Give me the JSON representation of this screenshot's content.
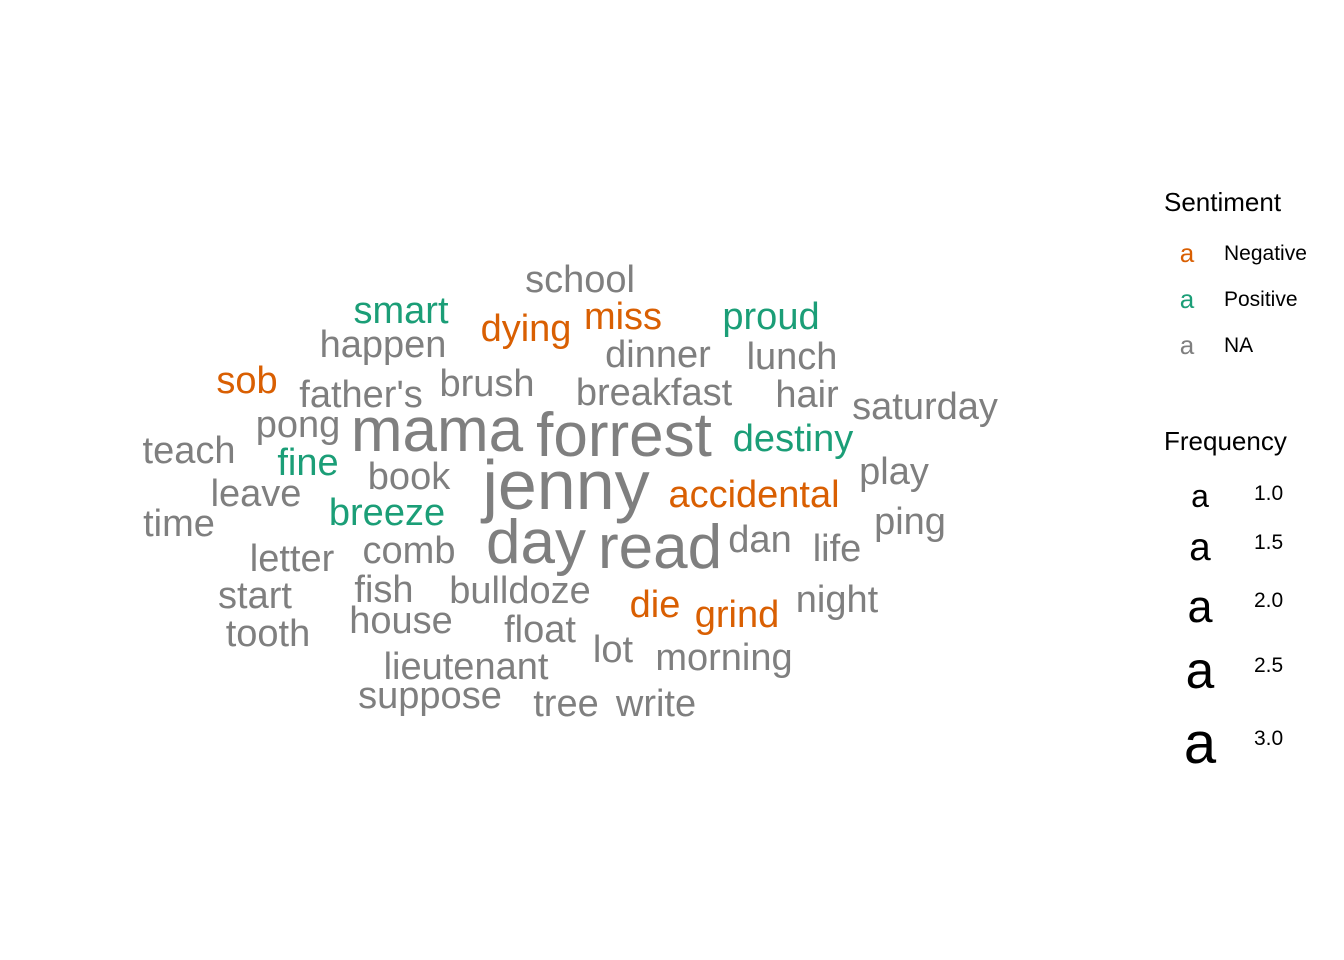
{
  "chart_data": {
    "type": "wordcloud",
    "sentiment_colors": {
      "Negative": "#D95F02",
      "Positive": "#1B9E77",
      "NA": "#7F7F7F"
    },
    "words": [
      {
        "word": "jenny",
        "frequency": 3.0,
        "sentiment": "NA"
      },
      {
        "word": "forrest",
        "frequency": 2.5,
        "sentiment": "NA"
      },
      {
        "word": "mama",
        "frequency": 2.5,
        "sentiment": "NA"
      },
      {
        "word": "read",
        "frequency": 2.5,
        "sentiment": "NA"
      },
      {
        "word": "day",
        "frequency": 2.5,
        "sentiment": "NA"
      },
      {
        "word": "school",
        "frequency": 1.0,
        "sentiment": "NA"
      },
      {
        "word": "smart",
        "frequency": 1.0,
        "sentiment": "Positive"
      },
      {
        "word": "miss",
        "frequency": 1.0,
        "sentiment": "Negative"
      },
      {
        "word": "dying",
        "frequency": 1.0,
        "sentiment": "Negative"
      },
      {
        "word": "proud",
        "frequency": 1.0,
        "sentiment": "Positive"
      },
      {
        "word": "happen",
        "frequency": 1.0,
        "sentiment": "NA"
      },
      {
        "word": "dinner",
        "frequency": 1.0,
        "sentiment": "NA"
      },
      {
        "word": "lunch",
        "frequency": 1.0,
        "sentiment": "NA"
      },
      {
        "word": "sob",
        "frequency": 1.0,
        "sentiment": "Negative"
      },
      {
        "word": "father's",
        "frequency": 1.0,
        "sentiment": "NA"
      },
      {
        "word": "brush",
        "frequency": 1.0,
        "sentiment": "NA"
      },
      {
        "word": "breakfast",
        "frequency": 1.0,
        "sentiment": "NA"
      },
      {
        "word": "hair",
        "frequency": 1.0,
        "sentiment": "NA"
      },
      {
        "word": "saturday",
        "frequency": 1.0,
        "sentiment": "NA"
      },
      {
        "word": "pong",
        "frequency": 1.0,
        "sentiment": "NA"
      },
      {
        "word": "teach",
        "frequency": 1.0,
        "sentiment": "NA"
      },
      {
        "word": "destiny",
        "frequency": 1.0,
        "sentiment": "Positive"
      },
      {
        "word": "fine",
        "frequency": 1.0,
        "sentiment": "Positive"
      },
      {
        "word": "book",
        "frequency": 1.0,
        "sentiment": "NA"
      },
      {
        "word": "play",
        "frequency": 1.0,
        "sentiment": "NA"
      },
      {
        "word": "leave",
        "frequency": 1.0,
        "sentiment": "NA"
      },
      {
        "word": "accidental",
        "frequency": 1.0,
        "sentiment": "Negative"
      },
      {
        "word": "time",
        "frequency": 1.0,
        "sentiment": "NA"
      },
      {
        "word": "breeze",
        "frequency": 1.0,
        "sentiment": "Positive"
      },
      {
        "word": "ping",
        "frequency": 1.0,
        "sentiment": "NA"
      },
      {
        "word": "dan",
        "frequency": 1.0,
        "sentiment": "NA"
      },
      {
        "word": "life",
        "frequency": 1.0,
        "sentiment": "NA"
      },
      {
        "word": "letter",
        "frequency": 1.0,
        "sentiment": "NA"
      },
      {
        "word": "comb",
        "frequency": 1.0,
        "sentiment": "NA"
      },
      {
        "word": "start",
        "frequency": 1.0,
        "sentiment": "NA"
      },
      {
        "word": "fish",
        "frequency": 1.0,
        "sentiment": "NA"
      },
      {
        "word": "bulldoze",
        "frequency": 1.0,
        "sentiment": "NA"
      },
      {
        "word": "die",
        "frequency": 1.0,
        "sentiment": "Negative"
      },
      {
        "word": "grind",
        "frequency": 1.0,
        "sentiment": "Negative"
      },
      {
        "word": "night",
        "frequency": 1.0,
        "sentiment": "NA"
      },
      {
        "word": "tooth",
        "frequency": 1.0,
        "sentiment": "NA"
      },
      {
        "word": "house",
        "frequency": 1.0,
        "sentiment": "NA"
      },
      {
        "word": "float",
        "frequency": 1.0,
        "sentiment": "NA"
      },
      {
        "word": "lot",
        "frequency": 1.0,
        "sentiment": "NA"
      },
      {
        "word": "morning",
        "frequency": 1.0,
        "sentiment": "NA"
      },
      {
        "word": "lieutenant",
        "frequency": 1.0,
        "sentiment": "NA"
      },
      {
        "word": "suppose",
        "frequency": 1.0,
        "sentiment": "NA"
      },
      {
        "word": "tree",
        "frequency": 1.0,
        "sentiment": "NA"
      },
      {
        "word": "write",
        "frequency": 1.0,
        "sentiment": "NA"
      }
    ],
    "legend": {
      "color": {
        "title": "Sentiment",
        "glyph": "a",
        "entries": [
          {
            "label": "Negative",
            "color": "#D95F02"
          },
          {
            "label": "Positive",
            "color": "#1B9E77"
          },
          {
            "label": "NA",
            "color": "#7F7F7F"
          }
        ]
      },
      "size": {
        "title": "Frequency",
        "glyph": "a",
        "entries": [
          {
            "label": "1.0",
            "value": 1.0
          },
          {
            "label": "1.5",
            "value": 1.5
          },
          {
            "label": "2.0",
            "value": 2.0
          },
          {
            "label": "2.5",
            "value": 2.5
          },
          {
            "label": "3.0",
            "value": 3.0
          }
        ]
      },
      "placement": "right"
    }
  }
}
